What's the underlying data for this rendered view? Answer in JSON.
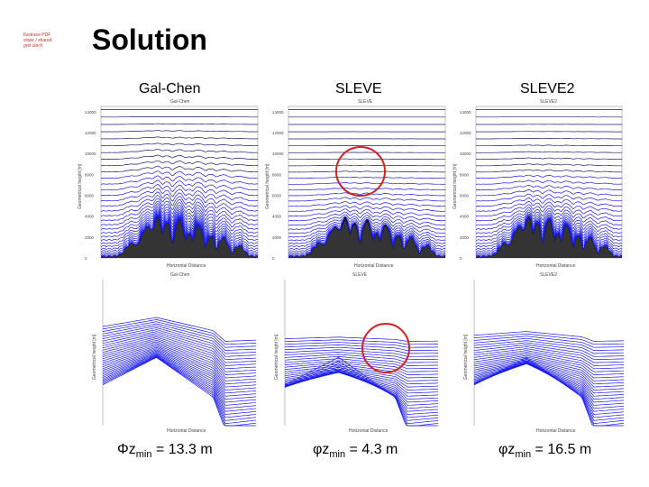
{
  "logo": {
    "lines": [
      "Ilustrace PDF",
      "slope / shared",
      "grid ulrich"
    ]
  },
  "slide": {
    "title": "Solution"
  },
  "columns": [
    {
      "header": "Gal-Chen",
      "top_label": "Gal-Chen",
      "bottom_label": "Gal-Chen",
      "caption_phi": "Φ",
      "caption_var": "z",
      "caption_sub": "min",
      "caption_rest": " = 13.3 m"
    },
    {
      "header": "SLEVE",
      "top_label": "SLEVE",
      "bottom_label": "SLEVE",
      "caption_phi": "φ",
      "caption_var": "z",
      "caption_sub": "min",
      "caption_rest": " = 4.3 m"
    },
    {
      "header": "SLEVE2",
      "top_label": "SLEVE2",
      "bottom_label": "SLEVE2",
      "caption_phi": "φ",
      "caption_var": "z",
      "caption_sub": "min",
      "caption_rest": " = 16.5 m"
    }
  ],
  "axes": {
    "top_ylabel": "Geometrical height [m]",
    "bottom_ylabel": "Geometrical height [m]",
    "xlabel": "Horizontal Distance",
    "yticks": [
      "14000",
      "12000",
      "10000",
      "8000",
      "6000",
      "4000",
      "2000",
      "0"
    ]
  },
  "colors": {
    "lines": "#1a1aee",
    "dark_lines": "#1a1a6e",
    "terrain": "#111111",
    "highlight": "#d42020"
  },
  "chart_data": [
    {
      "type": "line",
      "title": "Gal-Chen",
      "xlabel": "Horizontal Distance",
      "ylabel": "Geometrical height [m]",
      "ylim": [
        0,
        14500
      ],
      "description_series": "coordinate surfaces over Alpine terrain"
    },
    {
      "type": "line",
      "title": "SLEVE",
      "xlabel": "Horizontal Distance",
      "ylabel": "Geometrical height [m]",
      "ylim": [
        0,
        14500
      ]
    },
    {
      "type": "line",
      "title": "SLEVE2",
      "xlabel": "Horizontal Distance",
      "ylabel": "Geometrical height [m]",
      "ylim": [
        0,
        14500
      ]
    }
  ]
}
